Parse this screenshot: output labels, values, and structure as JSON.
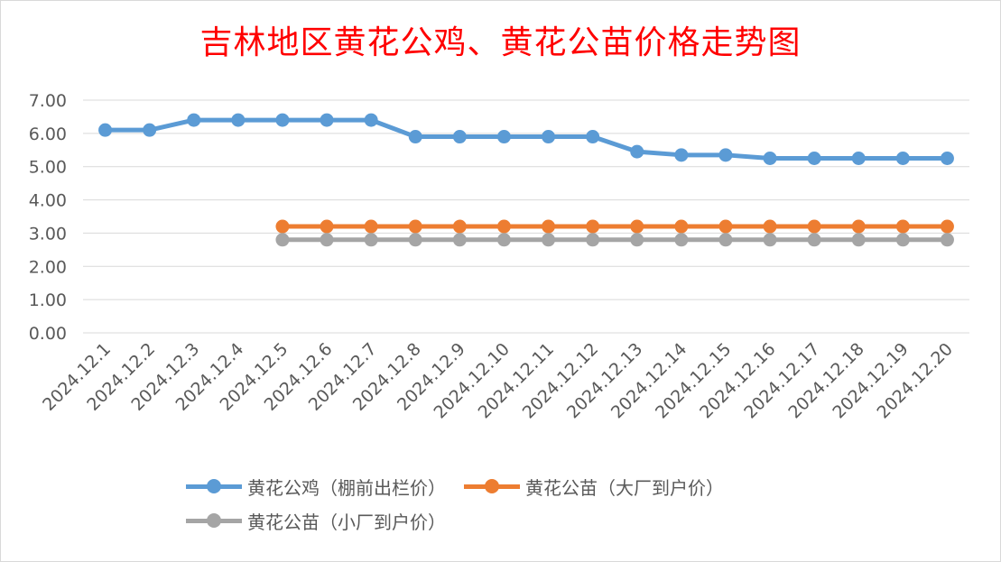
{
  "chart_data": {
    "type": "line",
    "title": "吉林地区黄花公鸡、黄花公苗价格走势图",
    "categories": [
      "2024.12.1",
      "2024.12.2",
      "2024.12.3",
      "2024.12.4",
      "2024.12.5",
      "2024.12.6",
      "2024.12.7",
      "2024.12.8",
      "2024.12.9",
      "2024.12.10",
      "2024.12.11",
      "2024.12.12",
      "2024.12.13",
      "2024.12.14",
      "2024.12.15",
      "2024.12.16",
      "2024.12.17",
      "2024.12.18",
      "2024.12.19",
      "2024.12.20"
    ],
    "ylim": [
      0,
      7
    ],
    "yticks": [
      "0.00",
      "1.00",
      "2.00",
      "3.00",
      "4.00",
      "5.00",
      "6.00",
      "7.00"
    ],
    "grid": true,
    "legend_position": "bottom",
    "series": [
      {
        "name": "黄花公鸡（棚前出栏价）",
        "color": "#5b9bd5",
        "values": [
          6.1,
          6.1,
          6.4,
          6.4,
          6.4,
          6.4,
          6.4,
          5.9,
          5.9,
          5.9,
          5.9,
          5.9,
          5.45,
          5.35,
          5.35,
          5.25,
          5.25,
          5.25,
          5.25,
          5.25
        ]
      },
      {
        "name": "黄花公苗（大厂到户价）",
        "color": "#ed7d31",
        "values": [
          null,
          null,
          null,
          null,
          3.2,
          3.2,
          3.2,
          3.2,
          3.2,
          3.2,
          3.2,
          3.2,
          3.2,
          3.2,
          3.2,
          3.2,
          3.2,
          3.2,
          3.2,
          3.2
        ]
      },
      {
        "name": "黄花公苗（小厂到户价）",
        "color": "#a5a5a5",
        "values": [
          null,
          null,
          null,
          null,
          2.8,
          2.8,
          2.8,
          2.8,
          2.8,
          2.8,
          2.8,
          2.8,
          2.8,
          2.8,
          2.8,
          2.8,
          2.8,
          2.8,
          2.8,
          2.8
        ]
      }
    ]
  }
}
